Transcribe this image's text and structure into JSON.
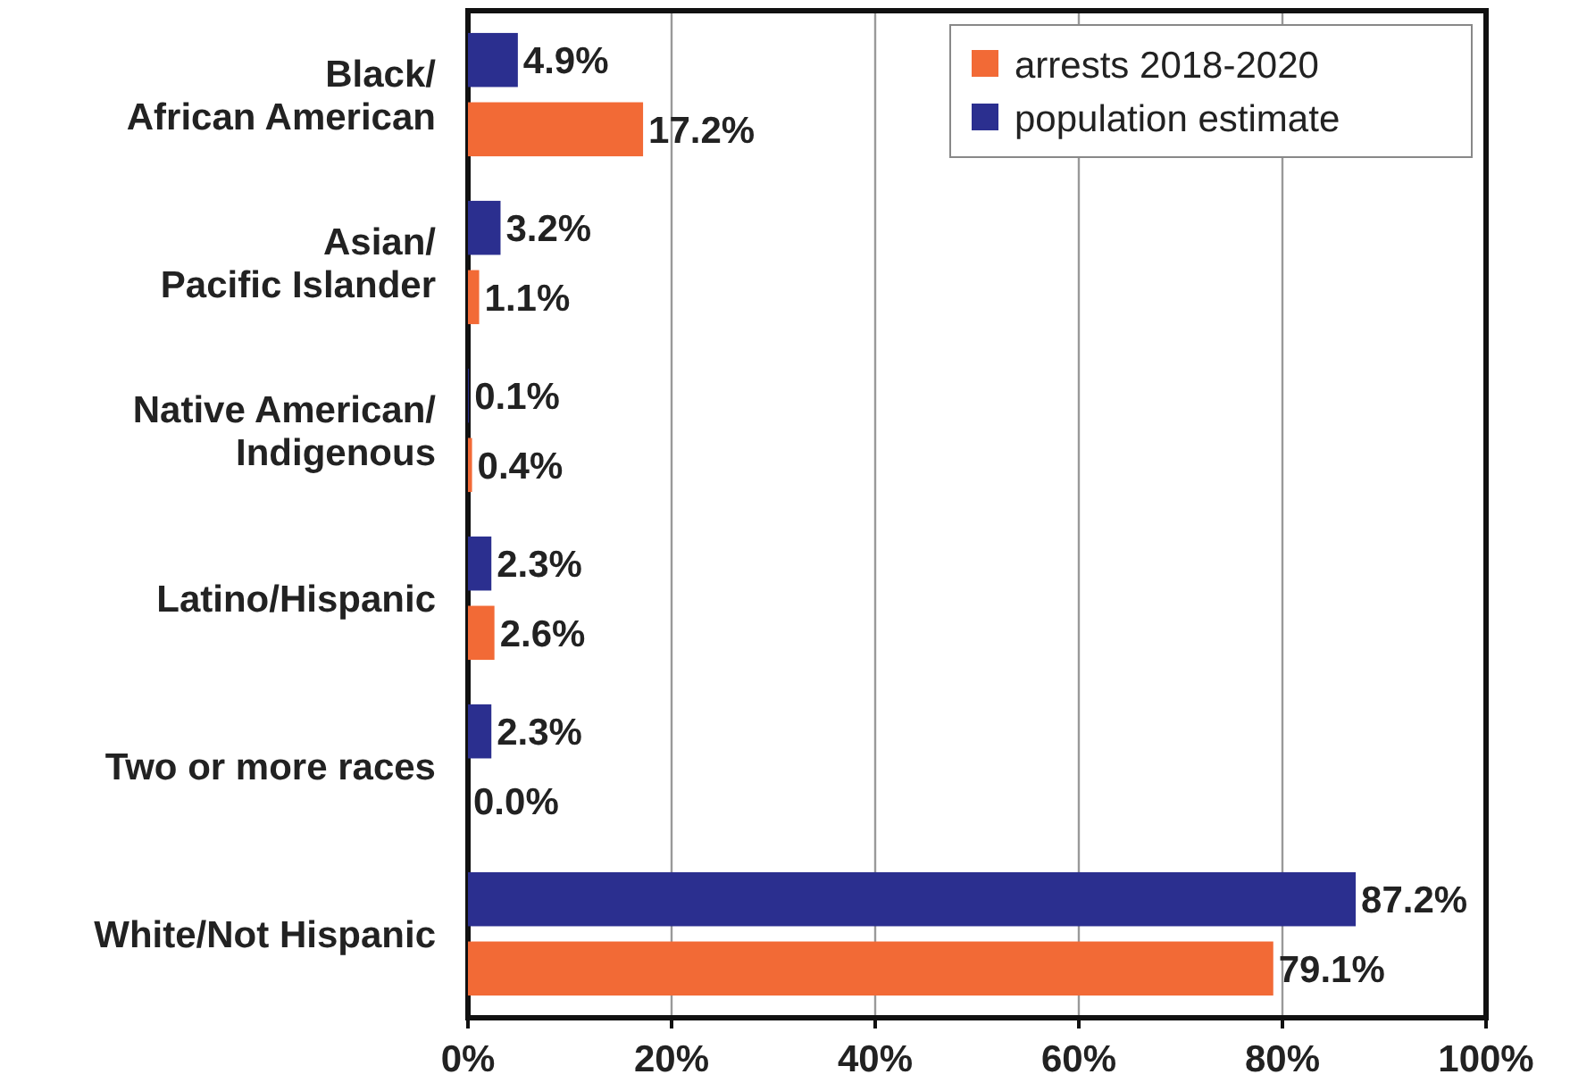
{
  "chart_data": {
    "type": "bar",
    "orientation": "horizontal",
    "categories": [
      "Black/African American",
      "Asian/Pacific Islander",
      "Native American/Indigenous",
      "Latino/Hispanic",
      "Two or more races",
      "White/Not Hispanic"
    ],
    "series": [
      {
        "name": "population estimate",
        "color": "#2b2f8f",
        "values": [
          4.9,
          3.2,
          0.1,
          2.3,
          2.3,
          87.2
        ]
      },
      {
        "name": "arrests 2018-2020",
        "color": "#f26a36",
        "values": [
          17.2,
          1.1,
          0.4,
          2.6,
          0.0,
          79.1
        ]
      }
    ],
    "value_labels": [
      [
        "4.9%",
        "3.2%",
        "0.1%",
        "2.3%",
        "2.3%",
        "87.2%"
      ],
      [
        "17.2%",
        "1.1%",
        "0.4%",
        "2.6%",
        "0.0%",
        "79.1%"
      ]
    ],
    "xlim": [
      0,
      100
    ],
    "xticks": [
      {
        "value": 0,
        "label": "0%"
      },
      {
        "value": 20,
        "label": "20%"
      },
      {
        "value": 40,
        "label": "40%"
      },
      {
        "value": 60,
        "label": "60%"
      },
      {
        "value": 80,
        "label": "80%"
      },
      {
        "value": 100,
        "label": "100%"
      }
    ],
    "grid": "x",
    "legend": "top right"
  }
}
